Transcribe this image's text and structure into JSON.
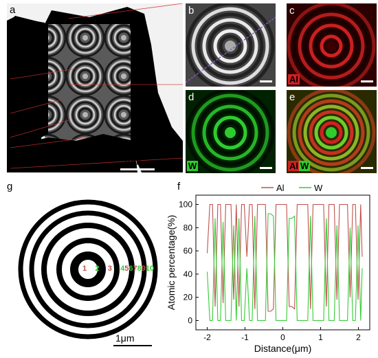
{
  "figure": {
    "panel_letters": {
      "a": "a",
      "b": "b",
      "c": "c",
      "d": "d",
      "e": "e",
      "f": "f",
      "g": "g"
    },
    "scale_bars": {
      "a": "2μm",
      "g": "1μm"
    },
    "channel_labels": {
      "c": "Al",
      "d": "W",
      "e_al": "Al",
      "e_w": "W"
    },
    "ring_numbers": [
      "1",
      "2",
      "3",
      "4",
      "5",
      "6",
      "7",
      "8",
      "9",
      "10"
    ],
    "colors": {
      "al": "#d94a3a",
      "w": "#33cc33",
      "map_al": "#d22020",
      "map_w": "#2ecc2e"
    }
  },
  "chart_data": {
    "type": "line",
    "title": "",
    "xlabel": "Distance(μm)",
    "ylabel": "Atomic percentage(%)",
    "xlim": [
      -2.3,
      2.3
    ],
    "ylim": [
      -8,
      108
    ],
    "xticks": [
      "-2",
      "-1",
      "0",
      "1",
      "2"
    ],
    "yticks": [
      "0",
      "20",
      "40",
      "60",
      "80",
      "100"
    ],
    "legend": "top",
    "series": [
      {
        "name": "Al",
        "color": "#c0504d",
        "x": [
          -2.0,
          -1.93,
          -1.86,
          -1.79,
          -1.72,
          -1.65,
          -1.58,
          -1.51,
          -1.44,
          -1.37,
          -1.3,
          -1.23,
          -1.16,
          -1.09,
          -1.02,
          -0.95,
          -0.88,
          -0.81,
          -0.74,
          -0.67,
          -0.6,
          -0.53,
          -0.46,
          -0.39,
          -0.32,
          -0.25,
          -0.18,
          -0.11,
          -0.04,
          0.03,
          0.1,
          0.17,
          0.24,
          0.31,
          0.38,
          0.45,
          0.52,
          0.59,
          0.66,
          0.73,
          0.8,
          0.87,
          0.94,
          1.01,
          1.08,
          1.15,
          1.22,
          1.29,
          1.36,
          1.43,
          1.5,
          1.57,
          1.64,
          1.71,
          1.78,
          1.85,
          1.92,
          1.99,
          2.06,
          2.1
        ],
        "values": [
          58,
          100,
          100,
          12,
          100,
          100,
          15,
          100,
          100,
          100,
          18,
          100,
          12,
          100,
          100,
          55,
          100,
          100,
          10,
          100,
          100,
          100,
          100,
          8,
          8,
          10,
          100,
          100,
          100,
          100,
          100,
          12,
          12,
          10,
          100,
          100,
          100,
          100,
          100,
          10,
          100,
          100,
          100,
          100,
          100,
          12,
          100,
          100,
          100,
          18,
          100,
          100,
          100,
          100,
          20,
          100,
          100,
          18,
          100,
          55
        ]
      },
      {
        "name": "W",
        "color": "#33cc33",
        "x": [
          -2.0,
          -1.93,
          -1.86,
          -1.79,
          -1.72,
          -1.65,
          -1.58,
          -1.51,
          -1.44,
          -1.37,
          -1.3,
          -1.23,
          -1.16,
          -1.09,
          -1.02,
          -0.95,
          -0.88,
          -0.81,
          -0.74,
          -0.67,
          -0.6,
          -0.53,
          -0.46,
          -0.39,
          -0.32,
          -0.25,
          -0.18,
          -0.11,
          -0.04,
          0.03,
          0.1,
          0.17,
          0.24,
          0.31,
          0.38,
          0.45,
          0.52,
          0.59,
          0.66,
          0.73,
          0.8,
          0.87,
          0.94,
          1.01,
          1.08,
          1.15,
          1.22,
          1.29,
          1.36,
          1.43,
          1.5,
          1.57,
          1.64,
          1.71,
          1.78,
          1.85,
          1.92,
          1.99,
          2.06,
          2.1
        ],
        "values": [
          42,
          0,
          0,
          88,
          0,
          0,
          85,
          0,
          0,
          0,
          82,
          0,
          88,
          0,
          0,
          45,
          0,
          0,
          90,
          0,
          0,
          0,
          0,
          92,
          92,
          90,
          0,
          0,
          0,
          0,
          0,
          88,
          88,
          90,
          0,
          0,
          0,
          0,
          0,
          90,
          0,
          0,
          0,
          0,
          0,
          88,
          0,
          0,
          0,
          82,
          0,
          0,
          0,
          0,
          80,
          0,
          0,
          82,
          0,
          45
        ]
      }
    ]
  }
}
